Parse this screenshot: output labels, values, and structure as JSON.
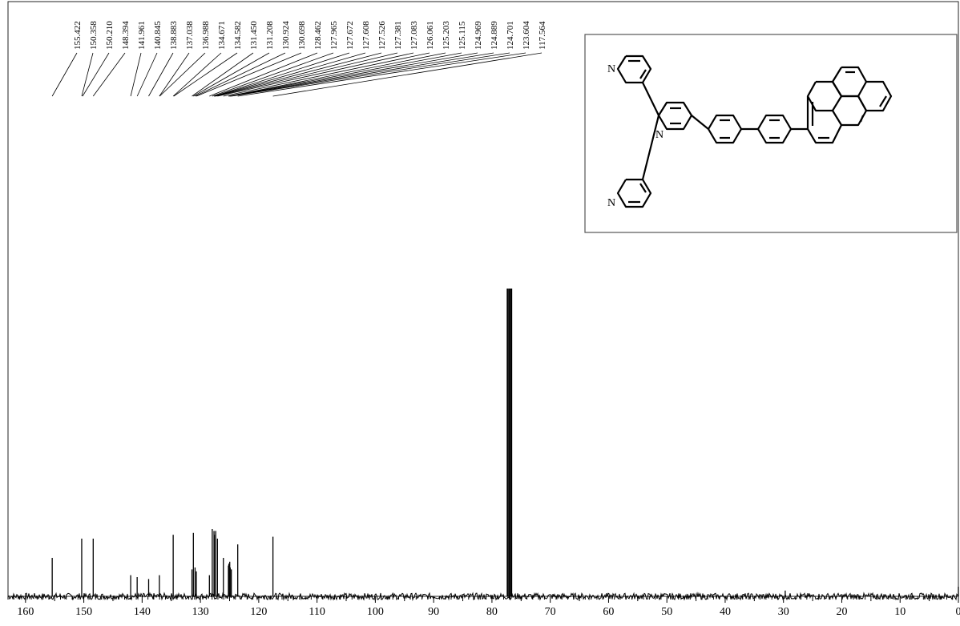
{
  "chart_data": {
    "type": "line",
    "title": "",
    "xlabel": "",
    "ylabel": "",
    "x_reversed": true,
    "xlim": [
      163,
      0
    ],
    "x_ticks": [
      160,
      150,
      140,
      130,
      120,
      110,
      100,
      90,
      80,
      70,
      60,
      50,
      40,
      30,
      20,
      10,
      0
    ],
    "grid": false,
    "peak_labels": [
      "155.422",
      "150.358",
      "150.210",
      "148.394",
      "141.961",
      "140.845",
      "138.883",
      "137.038",
      "136.988",
      "134.671",
      "134.582",
      "131.450",
      "131.208",
      "130.924",
      "130.698",
      "128.462",
      "127.965",
      "127.672",
      "127.608",
      "127.526",
      "127.381",
      "127.083",
      "126.061",
      "125.203",
      "125.115",
      "124.969",
      "124.889",
      "124.701",
      "123.604",
      "117.564"
    ],
    "peaks": [
      {
        "ppm": 155.42,
        "h": 0.2
      },
      {
        "ppm": 150.36,
        "h": 0.3
      },
      {
        "ppm": 148.39,
        "h": 0.3
      },
      {
        "ppm": 141.96,
        "h": 0.11
      },
      {
        "ppm": 140.85,
        "h": 0.1
      },
      {
        "ppm": 138.88,
        "h": 0.09
      },
      {
        "ppm": 137.04,
        "h": 0.11
      },
      {
        "ppm": 134.67,
        "h": 0.32
      },
      {
        "ppm": 131.45,
        "h": 0.14
      },
      {
        "ppm": 131.21,
        "h": 0.33
      },
      {
        "ppm": 130.92,
        "h": 0.15
      },
      {
        "ppm": 130.7,
        "h": 0.13
      },
      {
        "ppm": 128.46,
        "h": 0.11
      },
      {
        "ppm": 127.97,
        "h": 0.35
      },
      {
        "ppm": 127.67,
        "h": 0.34
      },
      {
        "ppm": 127.61,
        "h": 0.32
      },
      {
        "ppm": 127.38,
        "h": 0.34
      },
      {
        "ppm": 127.08,
        "h": 0.3
      },
      {
        "ppm": 126.06,
        "h": 0.2
      },
      {
        "ppm": 125.2,
        "h": 0.16
      },
      {
        "ppm": 125.12,
        "h": 0.17
      },
      {
        "ppm": 124.97,
        "h": 0.18
      },
      {
        "ppm": 124.89,
        "h": 0.15
      },
      {
        "ppm": 124.7,
        "h": 0.14
      },
      {
        "ppm": 123.6,
        "h": 0.27
      },
      {
        "ppm": 117.56,
        "h": 0.31
      },
      {
        "ppm": 77.32,
        "h": 1.6
      },
      {
        "ppm": 77.0,
        "h": 1.6
      },
      {
        "ppm": 76.68,
        "h": 1.6
      },
      {
        "ppm": 29.7,
        "h": 0.03
      },
      {
        "ppm": 0.0,
        "h": 0.05
      }
    ],
    "annotations": [
      {
        "type": "structure",
        "atoms": [
          "N",
          "N",
          "N"
        ]
      }
    ]
  }
}
